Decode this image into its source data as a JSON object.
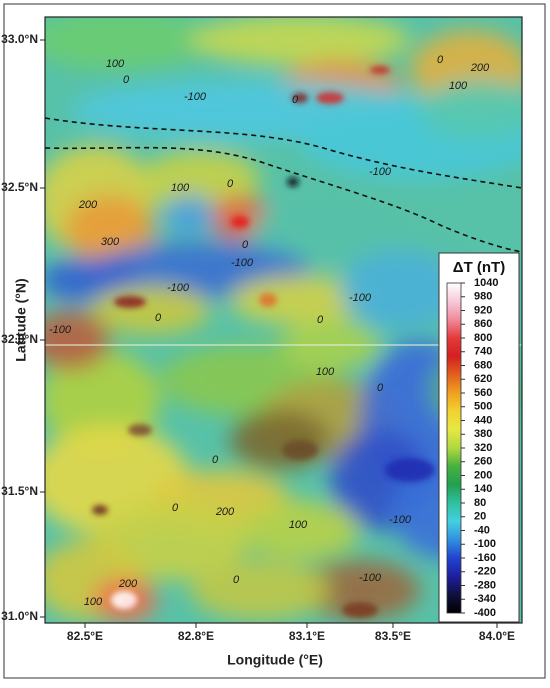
{
  "map": {
    "x_axis_label": "Longitude (°E)",
    "y_axis_label": "Latitude (°N)",
    "x_tick_labels": [
      "82.5°E",
      "82.8°E",
      "83.1°E",
      "83.5°E",
      "84.0°E"
    ],
    "y_tick_labels": [
      "33.0°N",
      "32.5°N",
      "32.0°N",
      "31.5°N",
      "31.0°N"
    ],
    "contour_labels": [
      "100",
      "0",
      "0",
      "200",
      "100",
      "-100",
      "0",
      "-100",
      "100",
      "0",
      "200",
      "300",
      "0",
      "-100",
      "-100",
      "0",
      "-100",
      "0",
      "0",
      "-100",
      "100",
      "0",
      "100",
      "0",
      "0",
      "200",
      "100",
      "0",
      "-100",
      "-100",
      "200",
      "100",
      "0",
      "0",
      "-100"
    ],
    "colorbar": {
      "title": "ΔT (nT)",
      "ticks": [
        1040,
        980,
        920,
        860,
        800,
        740,
        680,
        620,
        560,
        500,
        440,
        380,
        320,
        260,
        200,
        140,
        80,
        20,
        -40,
        -100,
        -160,
        -220,
        -280,
        -340,
        -400
      ],
      "colors": [
        "#ffffff",
        "#f6cad8",
        "#f08a9a",
        "#e43a3a",
        "#d42020",
        "#e0601e",
        "#f0a020",
        "#f2d232",
        "#e6e842",
        "#b0d840",
        "#48b040",
        "#22a050",
        "#30c0a0",
        "#44d0e0",
        "#3090e0",
        "#2244d0",
        "#1e1ea0",
        "#101040",
        "#000000"
      ]
    }
  }
}
